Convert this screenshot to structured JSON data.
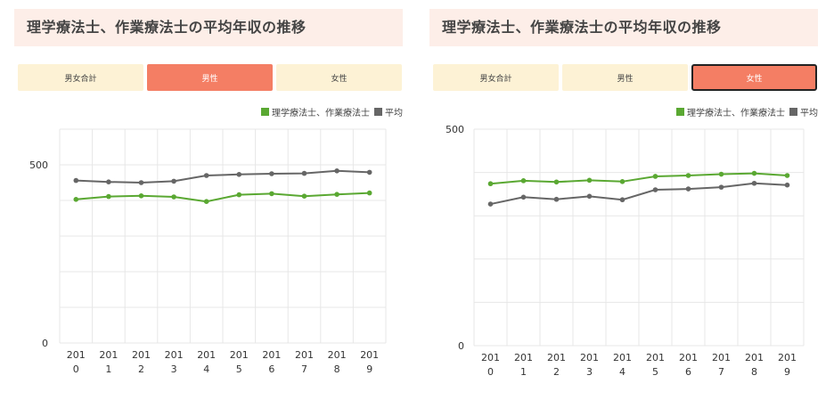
{
  "colors": {
    "green": "#5aa832",
    "gray": "#666666",
    "accent": "#f47e64",
    "tab_bg": "#fdf2d5",
    "title_bg": "#fdeee8"
  },
  "panels": [
    {
      "title": "理学療法士、作業療法士の平均年収の推移",
      "tabs": [
        {
          "label": "男女合計",
          "active": false
        },
        {
          "label": "男性",
          "active": true
        },
        {
          "label": "女性",
          "active": false
        }
      ],
      "legend": [
        "理学療法士、作業療法士",
        "平均"
      ]
    },
    {
      "title": "理学療法士、作業療法士の平均年収の推移",
      "tabs": [
        {
          "label": "男女合計",
          "active": false
        },
        {
          "label": "男性",
          "active": false
        },
        {
          "label": "女性",
          "active": true
        }
      ],
      "legend": [
        "理学療法士、作業療法士",
        "平均"
      ]
    }
  ],
  "chart_data": [
    {
      "type": "line",
      "x": [
        "2010",
        "2011",
        "2012",
        "2013",
        "2014",
        "2015",
        "2016",
        "2017",
        "2018",
        "2019"
      ],
      "x_tick_lines": [
        [
          "201",
          "0"
        ],
        [
          "201",
          "1"
        ],
        [
          "201",
          "2"
        ],
        [
          "201",
          "3"
        ],
        [
          "201",
          "4"
        ],
        [
          "201",
          "5"
        ],
        [
          "201",
          "6"
        ],
        [
          "201",
          "7"
        ],
        [
          "201",
          "8"
        ],
        [
          "201",
          "9"
        ]
      ],
      "series": [
        {
          "name": "理学療法士、作業療法士",
          "color": "#5aa832",
          "values": [
            403,
            411,
            413,
            410,
            397,
            416,
            419,
            412,
            417,
            421
          ]
        },
        {
          "name": "平均",
          "color": "#666666",
          "values": [
            456,
            452,
            450,
            454,
            470,
            473,
            475,
            476,
            483,
            479
          ]
        }
      ],
      "yticks": [
        "0",
        "500"
      ],
      "ylim": [
        0,
        600
      ],
      "grid": true,
      "legend_position": "top-right"
    },
    {
      "type": "line",
      "x": [
        "2010",
        "2011",
        "2012",
        "2013",
        "2014",
        "2015",
        "2016",
        "2017",
        "2018",
        "2019"
      ],
      "x_tick_lines": [
        [
          "201",
          "0"
        ],
        [
          "201",
          "1"
        ],
        [
          "201",
          "2"
        ],
        [
          "201",
          "3"
        ],
        [
          "201",
          "4"
        ],
        [
          "201",
          "5"
        ],
        [
          "201",
          "6"
        ],
        [
          "201",
          "7"
        ],
        [
          "201",
          "8"
        ],
        [
          "201",
          "9"
        ]
      ],
      "series": [
        {
          "name": "理学療法士、作業療法士",
          "color": "#5aa832",
          "values": [
            374,
            381,
            378,
            382,
            379,
            391,
            393,
            396,
            398,
            393
          ]
        },
        {
          "name": "平均",
          "color": "#666666",
          "values": [
            327,
            343,
            338,
            345,
            337,
            360,
            362,
            366,
            375,
            371
          ]
        }
      ],
      "yticks": [
        "0",
        "500"
      ],
      "ylim": [
        0,
        500
      ],
      "grid": true,
      "legend_position": "top-right"
    }
  ]
}
